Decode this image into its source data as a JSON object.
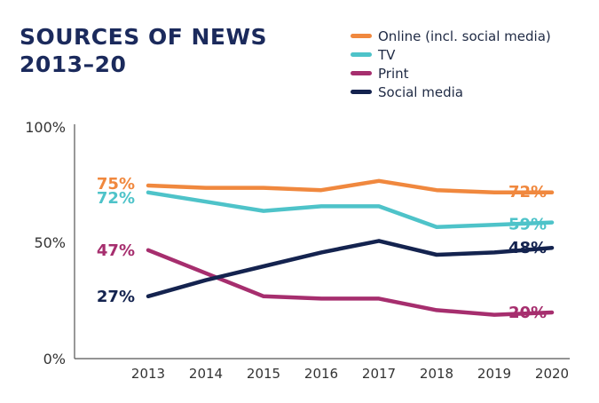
{
  "chart_data": {
    "type": "line",
    "title": "SOURCES OF NEWS",
    "subtitle": "2013–20",
    "x": [
      "2013",
      "2014",
      "2015",
      "2016",
      "2017",
      "2018",
      "2019",
      "2020"
    ],
    "ylim": [
      0,
      100
    ],
    "yticks": [
      "0%",
      "50%",
      "100%"
    ],
    "legend_position": "top-right",
    "series": [
      {
        "name": "Online (incl. social media)",
        "color": "#f0883e",
        "values": [
          75,
          74,
          74,
          73,
          77,
          73,
          72,
          72
        ],
        "start_label": "75%",
        "end_label": "72%"
      },
      {
        "name": "TV",
        "color": "#4ec3c9",
        "values": [
          72,
          68,
          64,
          66,
          66,
          57,
          58,
          59
        ],
        "start_label": "72%",
        "end_label": "59%"
      },
      {
        "name": "Print",
        "color": "#a62e6e",
        "values": [
          47,
          37,
          27,
          26,
          26,
          21,
          19,
          20
        ],
        "start_label": "47%",
        "end_label": "20%"
      },
      {
        "name": "Social media",
        "color": "#14234f",
        "values": [
          27,
          34,
          40,
          46,
          51,
          45,
          46,
          48
        ],
        "start_label": "27%",
        "end_label": "48%"
      }
    ]
  }
}
